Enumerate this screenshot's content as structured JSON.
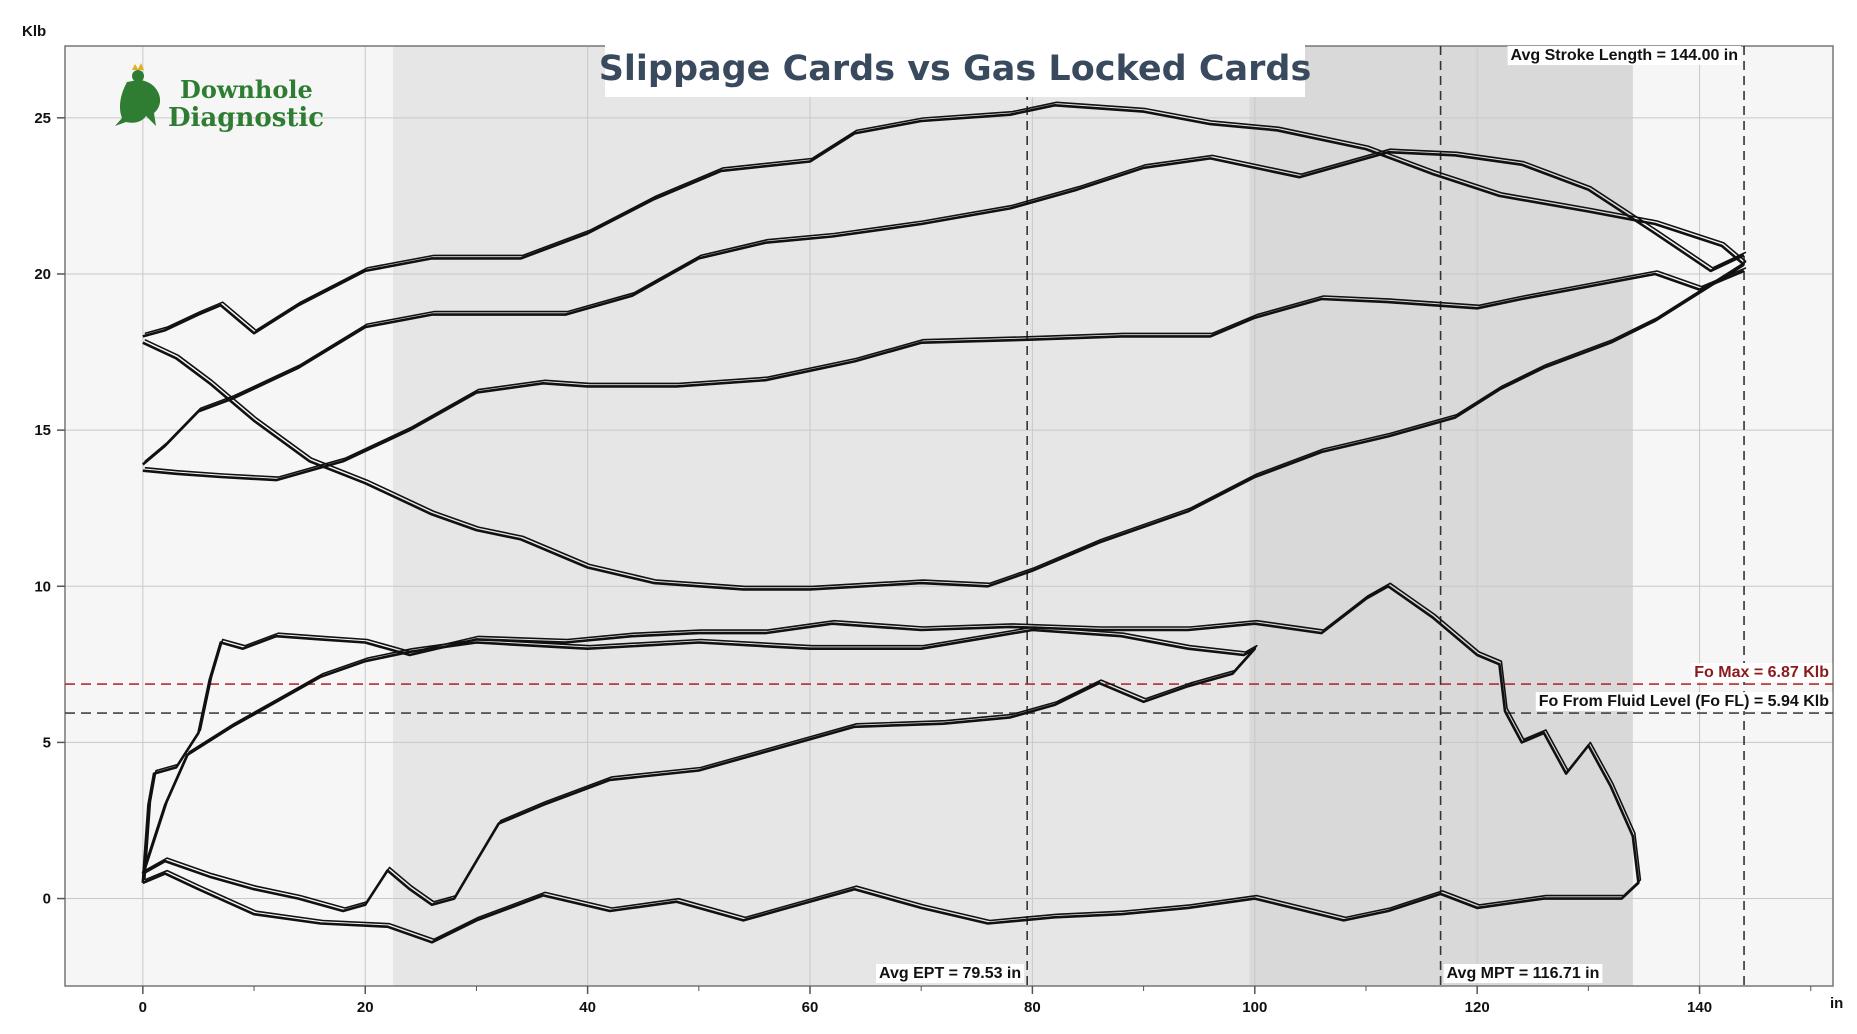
{
  "chart_data": {
    "type": "line",
    "title": "Slippage Cards vs Gas Locked Cards",
    "ylabel": "Klb",
    "xlabel": "in",
    "xlim": [
      -7,
      152
    ],
    "ylim": [
      -2.8,
      27.3
    ],
    "x_ticks": [
      0,
      20,
      40,
      60,
      80,
      100,
      120,
      140
    ],
    "y_ticks": [
      0,
      5,
      10,
      15,
      20,
      25
    ],
    "grid": true,
    "shaded_regions": [
      {
        "from": 22.5,
        "to": 99.5,
        "shade": "light"
      },
      {
        "from": 99.5,
        "to": 134,
        "shade": "dark"
      }
    ],
    "vertical_markers": [
      {
        "x": 79.53,
        "label": "Avg EPT = 79.53 in"
      },
      {
        "x": 116.71,
        "label": "Avg MPT = 116.71 in"
      },
      {
        "x": 144.0,
        "label": "Avg Stroke Length = 144.00 in"
      }
    ],
    "horizontal_markers": [
      {
        "y": 6.87,
        "label": "Fo Max = 6.87 Klb",
        "color": "#b03030"
      },
      {
        "y": 5.94,
        "label": "Fo From Fluid Level (Fo FL) = 5.94 Klb",
        "color": "#444444"
      }
    ],
    "series": [
      {
        "points": [
          [
            0,
            18
          ],
          [
            2,
            18.2
          ],
          [
            5,
            18.7
          ],
          [
            7,
            19
          ],
          [
            10,
            18.1
          ],
          [
            14,
            19
          ],
          [
            20,
            20.1
          ],
          [
            26,
            20.5
          ],
          [
            34,
            20.5
          ],
          [
            40,
            21.3
          ],
          [
            46,
            22.4
          ],
          [
            52,
            23.3
          ],
          [
            60,
            23.6
          ],
          [
            64,
            24.5
          ],
          [
            70,
            24.9
          ],
          [
            78,
            25.1
          ],
          [
            82,
            25.4
          ],
          [
            90,
            25.2
          ],
          [
            96,
            24.8
          ],
          [
            102,
            24.6
          ],
          [
            110,
            24
          ],
          [
            116,
            23.2
          ],
          [
            122,
            22.5
          ],
          [
            130,
            22
          ],
          [
            136,
            21.6
          ],
          [
            142,
            20.9
          ],
          [
            144,
            20.3
          ]
        ]
      },
      {
        "points": [
          [
            0,
            17.8
          ],
          [
            3,
            17.3
          ],
          [
            6,
            16.5
          ],
          [
            10,
            15.3
          ],
          [
            15,
            14
          ],
          [
            20,
            13.3
          ],
          [
            26,
            12.3
          ],
          [
            30,
            11.8
          ],
          [
            34,
            11.5
          ],
          [
            40,
            10.6
          ],
          [
            46,
            10.1
          ],
          [
            54,
            9.9
          ],
          [
            60,
            9.9
          ],
          [
            70,
            10.1
          ],
          [
            76,
            10
          ],
          [
            80,
            10.5
          ],
          [
            86,
            11.4
          ],
          [
            94,
            12.4
          ],
          [
            100,
            13.5
          ],
          [
            106,
            14.3
          ],
          [
            112,
            14.8
          ],
          [
            118,
            15.4
          ],
          [
            122,
            16.3
          ],
          [
            126,
            17
          ],
          [
            132,
            17.8
          ],
          [
            136,
            18.5
          ],
          [
            140,
            19.4
          ],
          [
            144,
            20.3
          ]
        ]
      },
      {
        "points": [
          [
            0,
            13.7
          ],
          [
            3,
            13.6
          ],
          [
            7,
            13.5
          ],
          [
            12,
            13.4
          ],
          [
            18,
            14
          ],
          [
            24,
            15
          ],
          [
            30,
            16.2
          ],
          [
            36,
            16.5
          ],
          [
            40,
            16.4
          ],
          [
            48,
            16.4
          ],
          [
            56,
            16.6
          ],
          [
            64,
            17.2
          ],
          [
            70,
            17.8
          ],
          [
            80,
            17.9
          ],
          [
            88,
            18
          ],
          [
            96,
            18
          ],
          [
            100,
            18.6
          ],
          [
            106,
            19.2
          ],
          [
            112,
            19.1
          ],
          [
            120,
            18.9
          ],
          [
            124,
            19.2
          ],
          [
            130,
            19.6
          ],
          [
            136,
            20
          ],
          [
            140,
            19.5
          ],
          [
            144,
            20.1
          ]
        ]
      },
      {
        "points": [
          [
            0,
            13.9
          ],
          [
            2,
            14.5
          ],
          [
            5,
            15.6
          ],
          [
            8,
            16
          ],
          [
            14,
            17
          ],
          [
            20,
            18.3
          ],
          [
            26,
            18.7
          ],
          [
            32,
            18.7
          ],
          [
            38,
            18.7
          ],
          [
            44,
            19.3
          ],
          [
            50,
            20.5
          ],
          [
            56,
            21
          ],
          [
            62,
            21.2
          ],
          [
            70,
            21.6
          ],
          [
            78,
            22.1
          ],
          [
            84,
            22.7
          ],
          [
            90,
            23.4
          ],
          [
            96,
            23.7
          ],
          [
            104,
            23.1
          ],
          [
            112,
            23.9
          ],
          [
            118,
            23.8
          ],
          [
            124,
            23.5
          ],
          [
            130,
            22.7
          ],
          [
            136,
            21.3
          ],
          [
            141,
            20.1
          ],
          [
            144,
            20.6
          ]
        ]
      },
      {
        "points": [
          [
            0,
            0.5
          ],
          [
            0.5,
            3
          ],
          [
            1,
            4
          ],
          [
            3,
            4.2
          ],
          [
            5,
            5.3
          ],
          [
            6,
            7
          ],
          [
            7,
            8.2
          ],
          [
            9,
            8
          ],
          [
            12,
            8.4
          ],
          [
            16,
            8.3
          ],
          [
            20,
            8.2
          ],
          [
            24,
            7.8
          ],
          [
            30,
            8.3
          ],
          [
            38,
            8.2
          ],
          [
            44,
            8.4
          ],
          [
            50,
            8.5
          ],
          [
            56,
            8.5
          ],
          [
            62,
            8.8
          ],
          [
            70,
            8.6
          ],
          [
            78,
            8.7
          ],
          [
            86,
            8.6
          ],
          [
            94,
            8.6
          ],
          [
            100,
            8.8
          ],
          [
            106,
            8.5
          ],
          [
            110,
            9.6
          ],
          [
            112,
            10
          ],
          [
            116,
            9
          ],
          [
            120,
            7.8
          ],
          [
            122,
            7.5
          ],
          [
            122.5,
            6
          ],
          [
            124,
            5
          ],
          [
            126,
            5.3
          ],
          [
            128,
            4
          ],
          [
            130,
            4.9
          ],
          [
            132,
            3.6
          ],
          [
            134,
            2
          ],
          [
            134.5,
            0.5
          ],
          [
            133,
            0
          ],
          [
            130,
            0
          ],
          [
            126,
            0
          ],
          [
            120,
            -0.3
          ],
          [
            116.7,
            0.15
          ],
          [
            112,
            -0.4
          ],
          [
            108,
            -0.7
          ],
          [
            100,
            0
          ],
          [
            94,
            -0.3
          ],
          [
            88,
            -0.5
          ],
          [
            82,
            -0.6
          ],
          [
            76,
            -0.8
          ],
          [
            70,
            -0.3
          ],
          [
            64,
            0.3
          ],
          [
            58,
            -0.3
          ],
          [
            54,
            -0.7
          ],
          [
            48,
            -0.1
          ],
          [
            42,
            -0.4
          ],
          [
            36,
            0.1
          ],
          [
            30,
            -0.7
          ],
          [
            26,
            -1.4
          ],
          [
            22,
            -0.9
          ],
          [
            16,
            -0.8
          ],
          [
            10,
            -0.5
          ],
          [
            5,
            0.3
          ],
          [
            2,
            0.8
          ],
          [
            0,
            0.5
          ]
        ]
      },
      {
        "points": [
          [
            0,
            0.8
          ],
          [
            2,
            3
          ],
          [
            4,
            4.6
          ],
          [
            8,
            5.5
          ],
          [
            12,
            6.3
          ],
          [
            16,
            7.1
          ],
          [
            20,
            7.6
          ],
          [
            24,
            7.9
          ],
          [
            30,
            8.2
          ],
          [
            40,
            8.0
          ],
          [
            50,
            8.2
          ],
          [
            60,
            8.0
          ],
          [
            70,
            8.0
          ],
          [
            80,
            8.6
          ],
          [
            88,
            8.4
          ],
          [
            94,
            8.0
          ],
          [
            99,
            7.8
          ],
          [
            100,
            8.0
          ],
          [
            98,
            7.2
          ],
          [
            94,
            6.8
          ],
          [
            90,
            6.3
          ],
          [
            86,
            6.9
          ],
          [
            82,
            6.2
          ],
          [
            78,
            5.8
          ],
          [
            72,
            5.6
          ],
          [
            64,
            5.5
          ],
          [
            58,
            4.9
          ],
          [
            50,
            4.1
          ],
          [
            42,
            3.8
          ],
          [
            36,
            3.0
          ],
          [
            32,
            2.4
          ],
          [
            30,
            1.2
          ],
          [
            28,
            0
          ],
          [
            26,
            -0.2
          ],
          [
            24,
            0.3
          ],
          [
            22,
            0.9
          ],
          [
            20,
            -0.2
          ],
          [
            18,
            -0.4
          ],
          [
            14,
            0
          ],
          [
            10,
            0.3
          ],
          [
            6,
            0.7
          ],
          [
            2,
            1.2
          ],
          [
            0,
            0.8
          ]
        ]
      }
    ]
  },
  "logo": {
    "line1": "Downhole",
    "line2": "Diagnostic"
  }
}
